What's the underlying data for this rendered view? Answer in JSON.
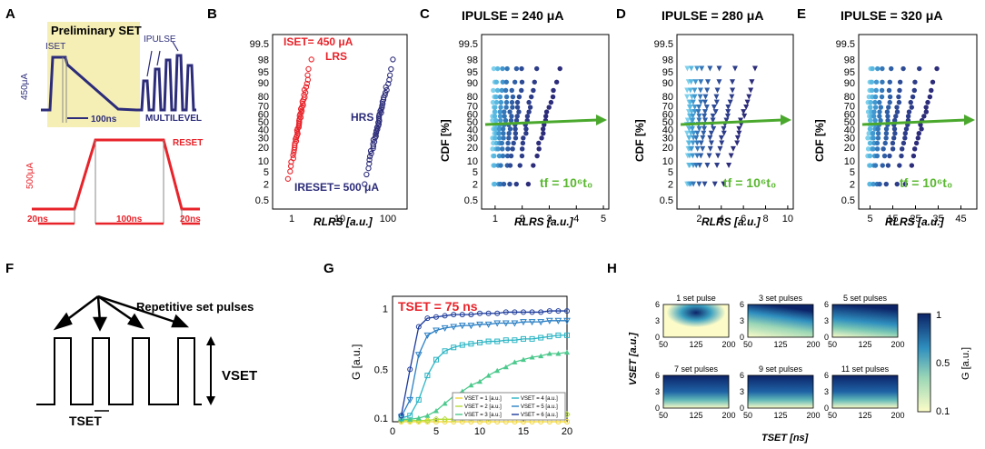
{
  "panel_labels": [
    "A",
    "B",
    "C",
    "D",
    "E",
    "F",
    "G",
    "H"
  ],
  "panel_a": {
    "prelim_title": "Preliminary SET",
    "iset_label": "ISET",
    "ipulse_label": "IPULSE",
    "current_450": "450μA",
    "time_100": "100ns",
    "multilevel": "MULTILEVEL",
    "reset": "RESET",
    "current_500": "500μA",
    "t20_left": "20ns",
    "t100": "100ns",
    "t20_right": "20ns",
    "colors": {
      "set": "#2c2c7a",
      "reset": "#e8232a",
      "highlight": "#f6efb5"
    }
  },
  "panel_f": {
    "rep_label": "Repetitive set pulses",
    "vset": "VSET",
    "tset": "TSET"
  },
  "chart_data": [
    {
      "id": "B",
      "type": "scatter",
      "xlabel": "RLRS [a.u.]",
      "ylabel": "",
      "xscale": "log",
      "xlim": [
        0.4,
        250
      ],
      "yticks": [
        "99.5",
        "98",
        "95",
        "90",
        "80",
        "70",
        "60",
        "50",
        "40",
        "30",
        "20",
        "10",
        "5",
        "2",
        "0.5"
      ],
      "xticks": [
        "1",
        "10",
        "100"
      ],
      "annotations": {
        "iset": "ISET= 450 μA",
        "lrs": "LRS",
        "hrs": "HRS",
        "ireset": "IRESET= 500 μA"
      },
      "series": [
        {
          "name": "LRS",
          "color": "#e8232a",
          "x_range": [
            0.8,
            2.6
          ],
          "cdf_range": [
            0.03,
            0.98
          ]
        },
        {
          "name": "HRS",
          "color": "#2c2c7a",
          "x_range": [
            30,
            135
          ],
          "cdf_range": [
            0.02,
            0.98
          ]
        }
      ]
    },
    {
      "id": "C",
      "type": "scatter",
      "title": "IPULSE = 240 μA",
      "xlabel": "RLRS [a.u.]",
      "ylabel": "CDF [%]",
      "xlim": [
        0.5,
        5.2
      ],
      "xticks": [
        1,
        2,
        3,
        4,
        5
      ],
      "yticks": [
        "99.5",
        "98",
        "95",
        "90",
        "80",
        "70",
        "60",
        "50",
        "40",
        "30",
        "20",
        "10",
        "5",
        "2",
        "0.5"
      ],
      "annotation": "tf = 10⁶t₀",
      "series_count": 8
    },
    {
      "id": "D",
      "type": "scatter",
      "title": "IPULSE = 280 μA",
      "xlabel": "RLRS [a.u.]",
      "ylabel": "CDF [%]",
      "xlim": [
        0,
        10.5
      ],
      "xticks": [
        2,
        4,
        6,
        8,
        10
      ],
      "yticks": [
        "99.5",
        "98",
        "95",
        "90",
        "80",
        "70",
        "60",
        "50",
        "40",
        "30",
        "20",
        "10",
        "5",
        "2",
        "0.5"
      ],
      "annotation": "tf = 10⁶t₀",
      "series_count": 8
    },
    {
      "id": "E",
      "type": "scatter",
      "title": "IPULSE = 320 μA",
      "xlabel": "RLRS [a.u.]",
      "ylabel": "CDF [%]",
      "xlim": [
        0,
        52
      ],
      "xticks": [
        5,
        15,
        25,
        35,
        45
      ],
      "yticks": [
        "99.5",
        "98",
        "95",
        "90",
        "80",
        "70",
        "60",
        "50",
        "40",
        "30",
        "20",
        "10",
        "5",
        "2",
        "0.5"
      ],
      "annotation": "tf = 10⁶t₀",
      "series_count": 8
    },
    {
      "id": "G",
      "type": "line",
      "title": "TSET = 75 ns",
      "xlabel": "",
      "ylabel": "G [a.u.]",
      "xlim": [
        0,
        20
      ],
      "ylim": [
        0.07,
        1.1
      ],
      "xticks": [
        0,
        5,
        10,
        15,
        20
      ],
      "yticks": [
        "0.1",
        "0.5",
        "1"
      ],
      "x": [
        1,
        2,
        3,
        4,
        5,
        6,
        7,
        8,
        9,
        10,
        11,
        12,
        13,
        14,
        15,
        16,
        17,
        18,
        19,
        20
      ],
      "series": [
        {
          "name": "VSET = 1 [a.u.]",
          "color": "#f2d535",
          "marker": "o",
          "values": [
            0.07,
            0.07,
            0.07,
            0.07,
            0.07,
            0.07,
            0.07,
            0.07,
            0.07,
            0.07,
            0.07,
            0.07,
            0.07,
            0.07,
            0.07,
            0.07,
            0.07,
            0.07,
            0.07,
            0.07
          ]
        },
        {
          "name": "VSET = 2 [a.u.]",
          "color": "#b5dc38",
          "marker": "d",
          "values": [
            0.08,
            0.08,
            0.08,
            0.08,
            0.09,
            0.09,
            0.09,
            0.1,
            0.1,
            0.1,
            0.1,
            0.11,
            0.11,
            0.11,
            0.12,
            0.12,
            0.12,
            0.12,
            0.13,
            0.13
          ]
        },
        {
          "name": "VSET = 3 [a.u.]",
          "color": "#4cc98c",
          "marker": "^",
          "values": [
            0.09,
            0.09,
            0.1,
            0.12,
            0.16,
            0.22,
            0.28,
            0.32,
            0.37,
            0.4,
            0.45,
            0.49,
            0.52,
            0.56,
            0.58,
            0.6,
            0.61,
            0.63,
            0.63,
            0.64
          ]
        },
        {
          "name": "VSET = 4 [a.u.]",
          "color": "#2ab5c4",
          "marker": "s",
          "values": [
            0.1,
            0.12,
            0.25,
            0.45,
            0.58,
            0.65,
            0.68,
            0.7,
            0.71,
            0.72,
            0.73,
            0.73,
            0.74,
            0.74,
            0.75,
            0.75,
            0.76,
            0.77,
            0.78,
            0.78
          ]
        },
        {
          "name": "VSET = 5 [a.u.]",
          "color": "#2a7fc4",
          "marker": "v",
          "values": [
            0.11,
            0.25,
            0.62,
            0.78,
            0.82,
            0.84,
            0.85,
            0.86,
            0.86,
            0.87,
            0.87,
            0.88,
            0.88,
            0.88,
            0.89,
            0.89,
            0.89,
            0.9,
            0.9,
            0.9
          ]
        },
        {
          "name": "VSET = 6 [a.u.]",
          "color": "#1d3b9b",
          "marker": "o",
          "values": [
            0.12,
            0.5,
            0.85,
            0.92,
            0.93,
            0.94,
            0.95,
            0.95,
            0.95,
            0.96,
            0.96,
            0.96,
            0.97,
            0.97,
            0.97,
            0.97,
            0.97,
            0.98,
            0.98,
            0.98
          ]
        }
      ],
      "legend_position": "bottom-right"
    },
    {
      "id": "H",
      "type": "heatmap",
      "xlabel": "TSET [ns]",
      "ylabel": "VSET [a.u.]",
      "colorbar_label": "G [a.u.]",
      "colorbar_ticks": [
        "1",
        "0.5",
        "0.1"
      ],
      "xticks": [
        "50",
        "125",
        "200"
      ],
      "yticks": [
        "0",
        "3",
        "6"
      ],
      "panels": [
        "1 set pulse",
        "3 set pulses",
        "5 set pulses",
        "7 set pulses",
        "9 set pulses",
        "11 set pulses"
      ]
    }
  ]
}
